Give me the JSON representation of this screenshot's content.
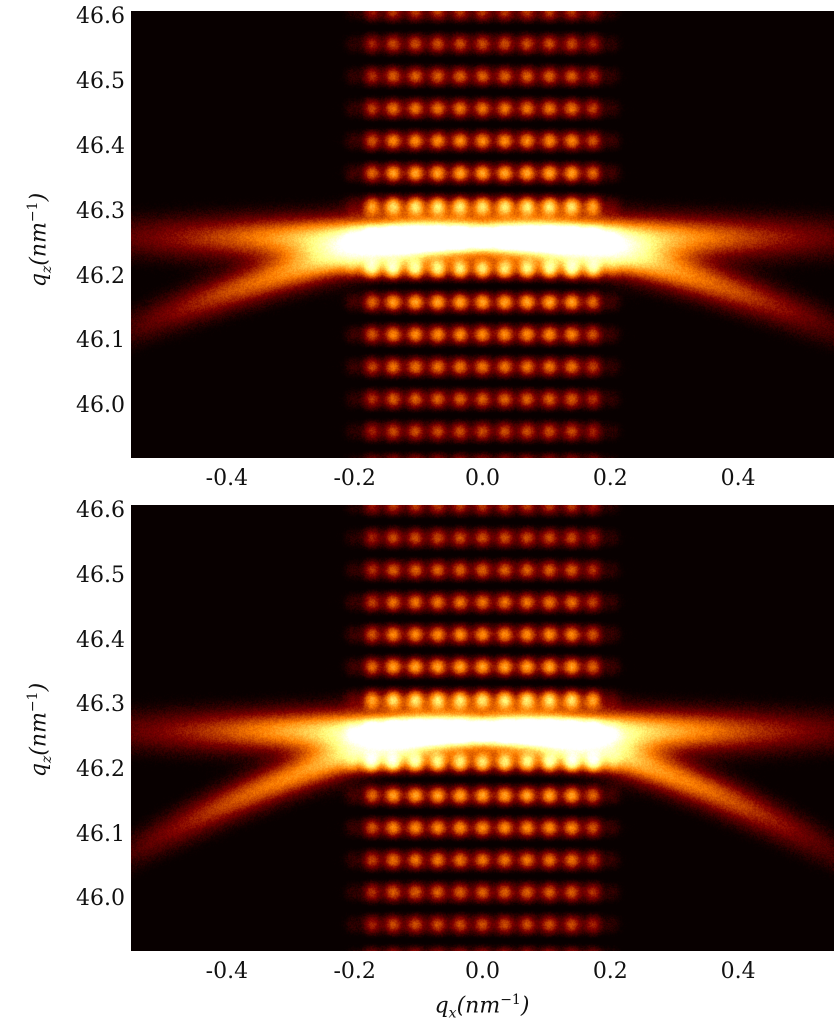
{
  "chart_data": [
    {
      "type": "heatmap",
      "xlabel": "",
      "ylabel_symbol": "q",
      "ylabel_sub": "z",
      "ylabel_unit": "(nm",
      "ylabel_exp": "−1",
      "ylabel_close": ")",
      "xlim": [
        -0.55,
        0.55
      ],
      "ylim": [
        45.92,
        46.61
      ],
      "xticks": [
        "-0.4",
        "-0.2",
        "0.0",
        "0.2",
        "0.4"
      ],
      "xtick_values": [
        -0.4,
        -0.2,
        0.0,
        0.2,
        0.4
      ],
      "yticks": [
        "46.0",
        "46.1",
        "46.2",
        "46.3",
        "46.4",
        "46.5",
        "46.6"
      ],
      "ytick_values": [
        46.0,
        46.1,
        46.2,
        46.3,
        46.4,
        46.5,
        46.6
      ],
      "colormap": "afmhot",
      "peak_center": {
        "qx": 0.0,
        "qz": 46.26
      },
      "central_rod_halfwidth_qx": 0.19,
      "fringe_spacing_qz": 0.05,
      "wings_qz_at_edges": 46.14,
      "grid": false
    },
    {
      "type": "heatmap",
      "xlabel_symbol": "q",
      "xlabel_sub": "x",
      "xlabel_unit": "(nm",
      "xlabel_exp": "−1",
      "xlabel_close": ")",
      "ylabel_symbol": "q",
      "ylabel_sub": "z",
      "ylabel_unit": "(nm",
      "ylabel_exp": "−1",
      "ylabel_close": ")",
      "xlim": [
        -0.55,
        0.55
      ],
      "ylim": [
        45.92,
        46.61
      ],
      "xticks": [
        "-0.4",
        "-0.2",
        "0.0",
        "0.2",
        "0.4"
      ],
      "xtick_values": [
        -0.4,
        -0.2,
        0.0,
        0.2,
        0.4
      ],
      "yticks": [
        "46.0",
        "46.1",
        "46.2",
        "46.3",
        "46.4",
        "46.5",
        "46.6"
      ],
      "ytick_values": [
        46.0,
        46.1,
        46.2,
        46.3,
        46.4,
        46.5,
        46.6
      ],
      "colormap": "afmhot",
      "peak_center": {
        "qx": 0.0,
        "qz": 46.26
      },
      "central_rod_halfwidth_qx": 0.19,
      "fringe_spacing_qz": 0.05,
      "wings_qz_at_edges": 46.1,
      "grid": false
    }
  ]
}
